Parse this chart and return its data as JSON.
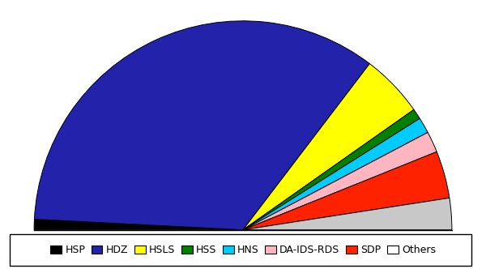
{
  "parties": [
    "HSP",
    "HDZ",
    "HSLS",
    "HSS",
    "HNS",
    "DA-IDS-RDS",
    "SDP",
    "Others"
  ],
  "values": [
    2,
    85,
    12,
    2,
    3,
    4,
    9,
    6
  ],
  "colors": [
    "#000000",
    "#2222AA",
    "#FFFF00",
    "#008000",
    "#00CCFF",
    "#FFB6C1",
    "#FF2200",
    "#C8C8C8"
  ],
  "figsize": [
    6.0,
    3.32
  ],
  "dpi": 100
}
